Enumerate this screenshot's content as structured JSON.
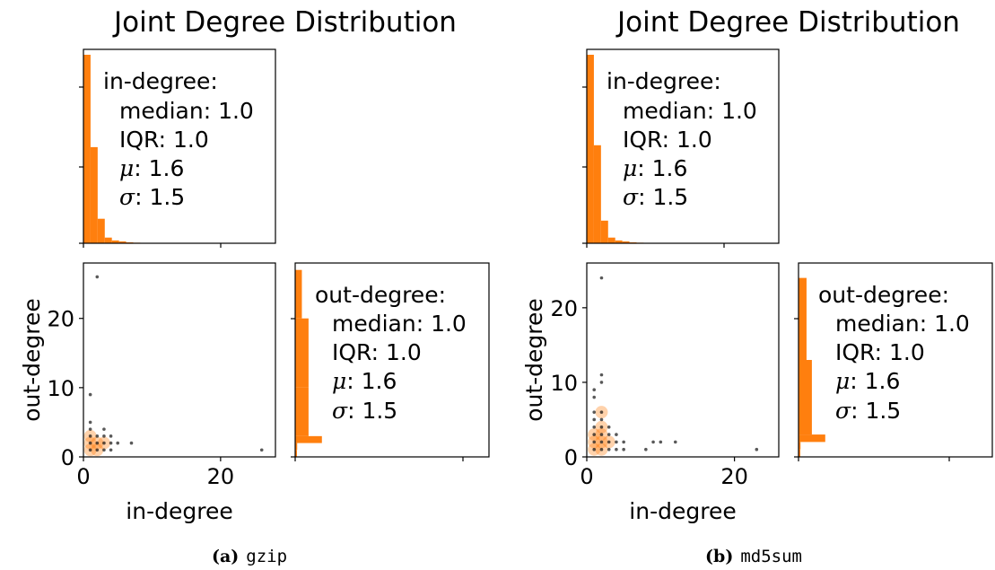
{
  "colors": {
    "bar": "#ff7f0e",
    "point": "#000000",
    "density": "#ff7f0e"
  },
  "chart_data": [
    {
      "type": "scatter",
      "label": "(a)",
      "name": "gzip",
      "title": "Joint Degree Distribution",
      "xlabel": "in-degree",
      "ylabel": "out-degree",
      "xlim": [
        0,
        28
      ],
      "ylim": [
        0,
        28
      ],
      "xticks": [
        0,
        20
      ],
      "yticks": [
        0,
        10,
        20
      ],
      "points": [
        [
          2,
          26
        ],
        [
          1,
          9
        ],
        [
          1,
          5
        ],
        [
          1,
          4
        ],
        [
          1,
          3
        ],
        [
          2,
          3
        ],
        [
          3,
          3
        ],
        [
          3,
          4
        ],
        [
          4,
          3
        ],
        [
          1,
          2
        ],
        [
          2,
          2
        ],
        [
          3,
          2
        ],
        [
          4,
          2
        ],
        [
          5,
          2
        ],
        [
          7,
          2
        ],
        [
          1,
          1
        ],
        [
          2,
          1
        ],
        [
          3,
          1
        ],
        [
          4,
          1
        ],
        [
          26,
          1
        ]
      ],
      "density": [
        [
          1,
          1
        ],
        [
          1,
          2
        ],
        [
          2,
          1
        ],
        [
          2,
          2
        ],
        [
          3,
          2
        ],
        [
          1,
          3
        ]
      ],
      "in_hist": {
        "bins": [
          0,
          1,
          2,
          3,
          4,
          5,
          6,
          7,
          8
        ],
        "counts": [
          1.0,
          0.51,
          0.13,
          0.03,
          0.015,
          0.01,
          0.005,
          0.003
        ],
        "stats": {
          "heading": "in-degree:",
          "median": "median: 1.0",
          "iqr": "IQR: 1.0",
          "mu": "1.6",
          "sigma": "1.5"
        }
      },
      "out_hist": {
        "bins": [
          0,
          1,
          2,
          3,
          10,
          20,
          27
        ],
        "counts": [
          0.13,
          0.05,
          0.02,
          0.01,
          0.01,
          0.005
        ],
        "stats": {
          "heading": "out-degree:",
          "median": "median: 1.0",
          "iqr": "IQR: 1.0",
          "mu": "1.6",
          "sigma": "1.5"
        }
      }
    },
    {
      "type": "scatter",
      "label": "(b)",
      "name": "md5sum",
      "title": "Joint Degree Distribution",
      "xlabel": "in-degree",
      "ylabel": "out-degree",
      "xlim": [
        0,
        26
      ],
      "ylim": [
        0,
        26
      ],
      "xticks": [
        0,
        20
      ],
      "yticks": [
        0,
        10,
        20
      ],
      "points": [
        [
          2,
          24
        ],
        [
          2,
          11
        ],
        [
          2,
          10
        ],
        [
          1,
          9
        ],
        [
          1,
          8
        ],
        [
          1,
          6
        ],
        [
          2,
          6
        ],
        [
          1,
          5
        ],
        [
          2,
          5
        ],
        [
          1,
          4
        ],
        [
          2,
          4
        ],
        [
          3,
          4
        ],
        [
          1,
          3
        ],
        [
          2,
          3
        ],
        [
          3,
          3
        ],
        [
          4,
          3
        ],
        [
          1,
          2
        ],
        [
          2,
          2
        ],
        [
          3,
          2
        ],
        [
          4,
          2
        ],
        [
          5,
          2
        ],
        [
          9,
          2
        ],
        [
          10,
          2
        ],
        [
          12,
          2
        ],
        [
          1,
          1
        ],
        [
          2,
          1
        ],
        [
          3,
          1
        ],
        [
          4,
          1
        ],
        [
          5,
          1
        ],
        [
          8,
          1
        ],
        [
          23,
          1
        ]
      ],
      "density": [
        [
          1,
          1
        ],
        [
          1,
          2
        ],
        [
          2,
          1
        ],
        [
          2,
          2
        ],
        [
          2,
          3
        ],
        [
          3,
          2
        ],
        [
          1,
          3
        ],
        [
          2,
          4
        ],
        [
          2,
          6
        ]
      ],
      "in_hist": {
        "bins": [
          0,
          1,
          2,
          3,
          4,
          5,
          6,
          7,
          8
        ],
        "counts": [
          1.0,
          0.52,
          0.12,
          0.03,
          0.015,
          0.01,
          0.005,
          0.003
        ],
        "stats": {
          "heading": "in-degree:",
          "median": "median: 1.0",
          "iqr": "IQR: 1.0",
          "mu": "1.6",
          "sigma": "1.5"
        }
      },
      "out_hist": {
        "bins": [
          0,
          1,
          2,
          3,
          13,
          24
        ],
        "counts": [
          0.13,
          0.05,
          0.02,
          0.01,
          0.006
        ],
        "stats": {
          "heading": "out-degree:",
          "median": "median: 1.0",
          "iqr": "IQR: 1.0",
          "mu": "1.6",
          "sigma": "1.5"
        }
      }
    }
  ]
}
